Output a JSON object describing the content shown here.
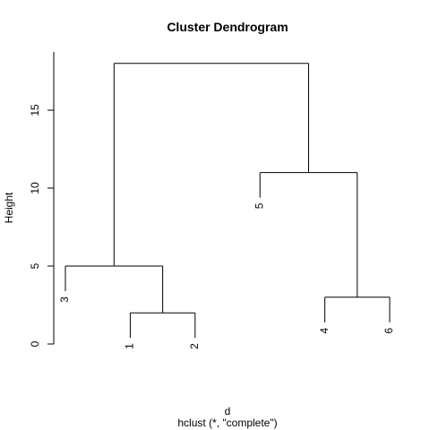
{
  "chart_data": {
    "type": "dendrogram",
    "title": "Cluster Dendrogram",
    "xlabel": "d",
    "sublabel": "hclust (*, \"complete\")",
    "ylabel": "Height",
    "ylim": [
      0,
      18
    ],
    "yticks": [
      0,
      5,
      10,
      15
    ],
    "leaf_order": [
      "3",
      "1",
      "2",
      "5",
      "4",
      "6"
    ],
    "merges": [
      {
        "left": "1",
        "right": "2",
        "height": 2.0
      },
      {
        "left": "4",
        "right": "6",
        "height": 3.0
      },
      {
        "left": "3",
        "right": "(1,2)",
        "height": 5.0
      },
      {
        "left": "5",
        "right": "(4,6)",
        "height": 11.0
      },
      {
        "left": "(3,(1,2))",
        "right": "(5,(4,6))",
        "height": 18.0
      }
    ]
  }
}
